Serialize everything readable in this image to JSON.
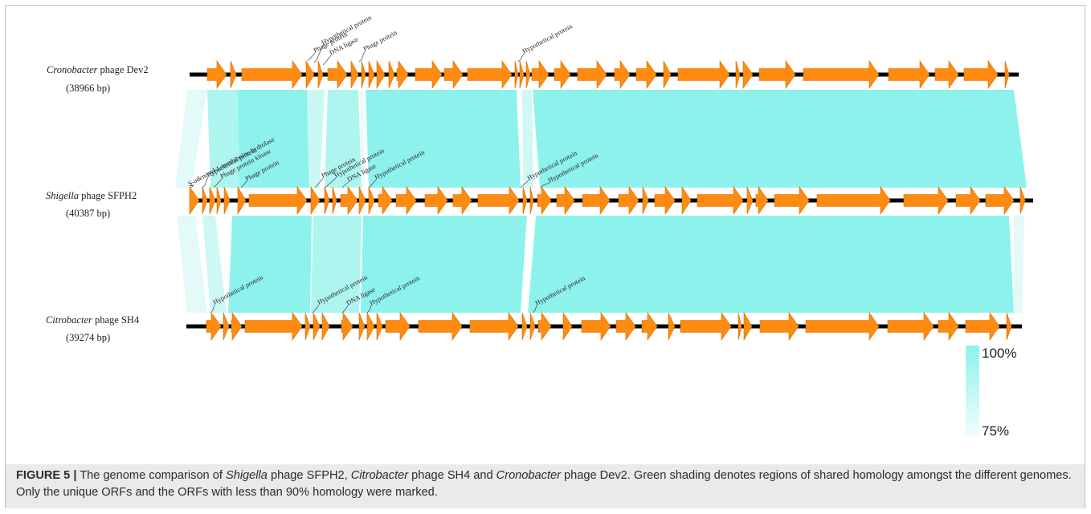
{
  "colors": {
    "gene_fill": "#FF8C10",
    "gene_stroke": "#D46A00",
    "homology_high": "#8EF2EC",
    "homology_low": "#E9FBFA",
    "backbone": "#000000",
    "label_line": "#444444"
  },
  "genomes": [
    {
      "id": "dev2",
      "name_italic": "Cronobacter",
      "name_rest": " phage Dev2",
      "length_label": "(38966 bp)",
      "labels": [
        "Phage protein",
        "Hypothetical protein",
        "DNA ligase",
        "Phage protein",
        "Hypothetical protein"
      ]
    },
    {
      "id": "sfph2",
      "name_italic": "Shigella",
      "name_rest": " phage SFPH2",
      "length_label": "(40387 bp)",
      "labels": [
        "S-adenosyl-L-methionine hydrolase",
        "Hypothetical protein",
        "Phage protein kinase",
        "Phage protein",
        "Phage protein",
        "Hypothetical protein",
        "DNA ligase",
        "Hypothetical protein",
        "Hypothetical protein",
        "Hypothetical protein"
      ]
    },
    {
      "id": "sh4",
      "name_italic": "Citrobacter",
      "name_rest": " phage SH4",
      "length_label": "(39274 bp)",
      "labels": [
        "Hypothetical protein",
        "Hypothetical protein",
        "DNA ligase",
        "Hypothetical protein",
        "Hypothetical protein"
      ]
    }
  ],
  "identity_scale": {
    "max_label": "100%",
    "min_label": "75%",
    "max_value": 100,
    "min_value": 75
  },
  "caption": {
    "fig_label": "FIGURE 5 |",
    "t1": " The genome comparison of ",
    "i1": "Shigella",
    "t2": " phage SFPH2, ",
    "i2": "Citrobacter",
    "t3": " phage SH4 and ",
    "i3": "Cronobacter",
    "t4": " phage Dev2. Green shading denotes regions of shared homology amongst the different genomes. Only the unique ORFs and the ORFs with less than 90% homology were marked."
  }
}
